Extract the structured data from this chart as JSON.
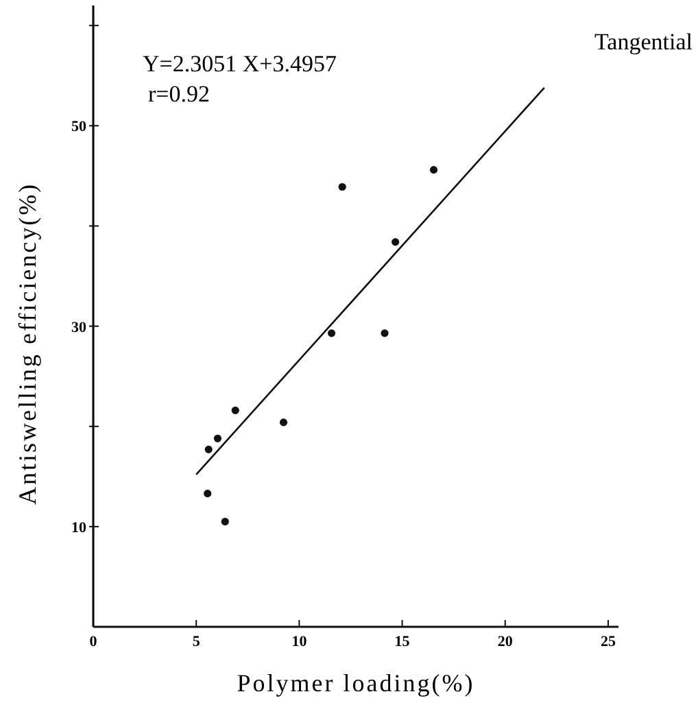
{
  "chart_data": {
    "type": "scatter",
    "xlabel": "Polymer loading(%)",
    "ylabel": "Antiswelling efficiency(%)",
    "annotations": [
      "Tangential",
      "Y=2.3051 X+3.4957",
      "r=0.92"
    ],
    "xlim": [
      0,
      25.5
    ],
    "xticks": [
      0,
      5,
      10,
      15,
      20,
      25
    ],
    "ylim": [
      0,
      62
    ],
    "yticks": [
      10,
      {
        "value": 20,
        "label": null
      },
      30,
      {
        "value": 40,
        "label": null
      },
      50,
      {
        "value": 60,
        "label": null
      }
    ],
    "grid": false,
    "marker": "circle",
    "series": [
      {
        "color": "#111111",
        "x": [
          5.6,
          6.04,
          6.9,
          5.55,
          6.4,
          9.24,
          11.57,
          14.15,
          12.09,
          14.67,
          16.53
        ],
        "values": [
          17.7,
          18.8,
          21.6,
          13.3,
          10.5,
          20.4,
          29.3,
          29.3,
          43.9,
          38.4,
          45.6
        ]
      },
      {
        "type": "line",
        "color": "#111111",
        "line_style": "solid",
        "marker": "none",
        "x": [
          5.0,
          21.9
        ],
        "values": [
          15.2,
          53.8
        ]
      }
    ]
  }
}
